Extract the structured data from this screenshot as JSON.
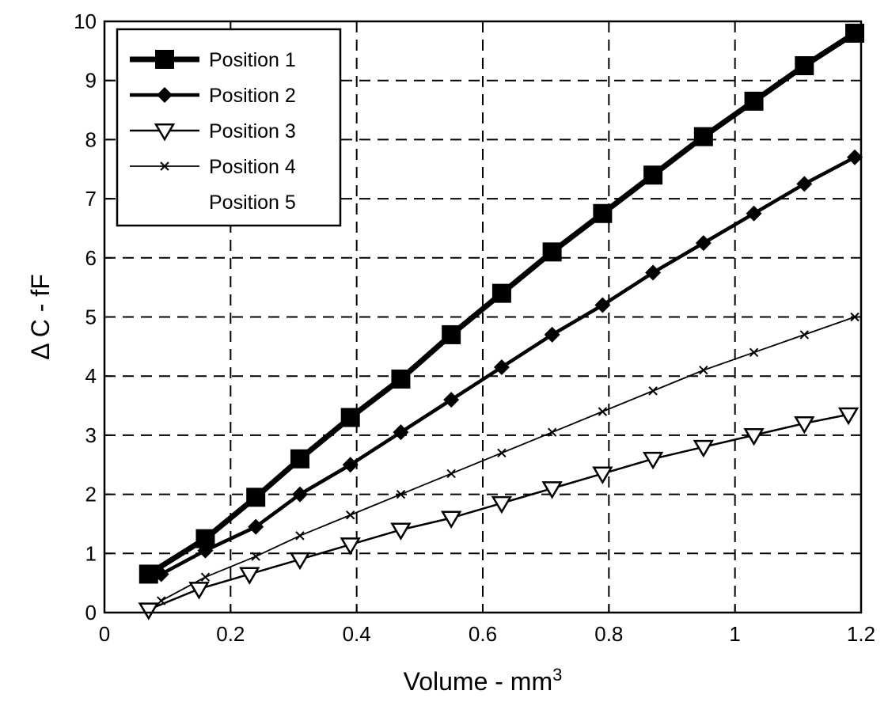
{
  "chart_data": {
    "type": "line",
    "title": "",
    "xlabel": "Volume - mm",
    "xlabel_sup": "3",
    "ylabel": "Δ C - fF",
    "xlim": [
      0,
      1.2
    ],
    "ylim": [
      0,
      10
    ],
    "xticks": [
      0,
      0.2,
      0.4,
      0.6,
      0.8,
      1,
      1.2
    ],
    "xtick_labels": [
      "0",
      "0.2",
      "0.4",
      "0.6",
      "0.8",
      "1",
      "1.2"
    ],
    "yticks": [
      0,
      1,
      2,
      3,
      4,
      5,
      6,
      7,
      8,
      9,
      10
    ],
    "ytick_labels": [
      "0",
      "1",
      "2",
      "3",
      "4",
      "5",
      "6",
      "7",
      "8",
      "9",
      "10"
    ],
    "grid": true,
    "legend_position": "top-left",
    "series": [
      {
        "name": "Position 1",
        "marker": "square",
        "line_width": 7,
        "color": "#000000",
        "x": [
          0.07,
          0.16,
          0.24,
          0.31,
          0.39,
          0.47,
          0.55,
          0.63,
          0.71,
          0.79,
          0.87,
          0.95,
          1.03,
          1.11,
          1.19
        ],
        "y": [
          0.65,
          1.25,
          1.95,
          2.6,
          3.3,
          3.95,
          4.7,
          5.4,
          6.1,
          6.75,
          7.4,
          8.05,
          8.65,
          9.25,
          9.8
        ]
      },
      {
        "name": "Position 2",
        "marker": "diamond",
        "line_width": 4.5,
        "color": "#000000",
        "x": [
          0.09,
          0.16,
          0.24,
          0.31,
          0.39,
          0.47,
          0.55,
          0.63,
          0.71,
          0.79,
          0.87,
          0.95,
          1.03,
          1.11,
          1.19
        ],
        "y": [
          0.65,
          1.05,
          1.45,
          2.0,
          2.5,
          3.05,
          3.6,
          4.15,
          4.7,
          5.2,
          5.75,
          6.25,
          6.75,
          7.25,
          7.7
        ]
      },
      {
        "name": "Position 3",
        "marker": "triangle-down",
        "line_width": 2.5,
        "color": "#000000",
        "x": [
          0.07,
          0.15,
          0.23,
          0.31,
          0.39,
          0.47,
          0.55,
          0.63,
          0.71,
          0.79,
          0.87,
          0.95,
          1.03,
          1.11,
          1.18
        ],
        "y": [
          0.05,
          0.4,
          0.65,
          0.9,
          1.15,
          1.4,
          1.6,
          1.85,
          2.1,
          2.35,
          2.6,
          2.8,
          3.0,
          3.2,
          3.35
        ]
      },
      {
        "name": "Position 4",
        "marker": "x",
        "line_width": 1.8,
        "color": "#000000",
        "x": [
          0.09,
          0.16,
          0.24,
          0.31,
          0.39,
          0.47,
          0.55,
          0.63,
          0.71,
          0.79,
          0.87,
          0.95,
          1.03,
          1.11,
          1.19
        ],
        "y": [
          0.2,
          0.6,
          0.95,
          1.3,
          1.65,
          2.0,
          2.35,
          2.7,
          3.05,
          3.4,
          3.75,
          4.1,
          4.4,
          4.7,
          5.0
        ]
      },
      {
        "name": "Position 5",
        "marker": "none",
        "line_width": 0,
        "color": "#000000",
        "x": [],
        "y": []
      }
    ]
  }
}
